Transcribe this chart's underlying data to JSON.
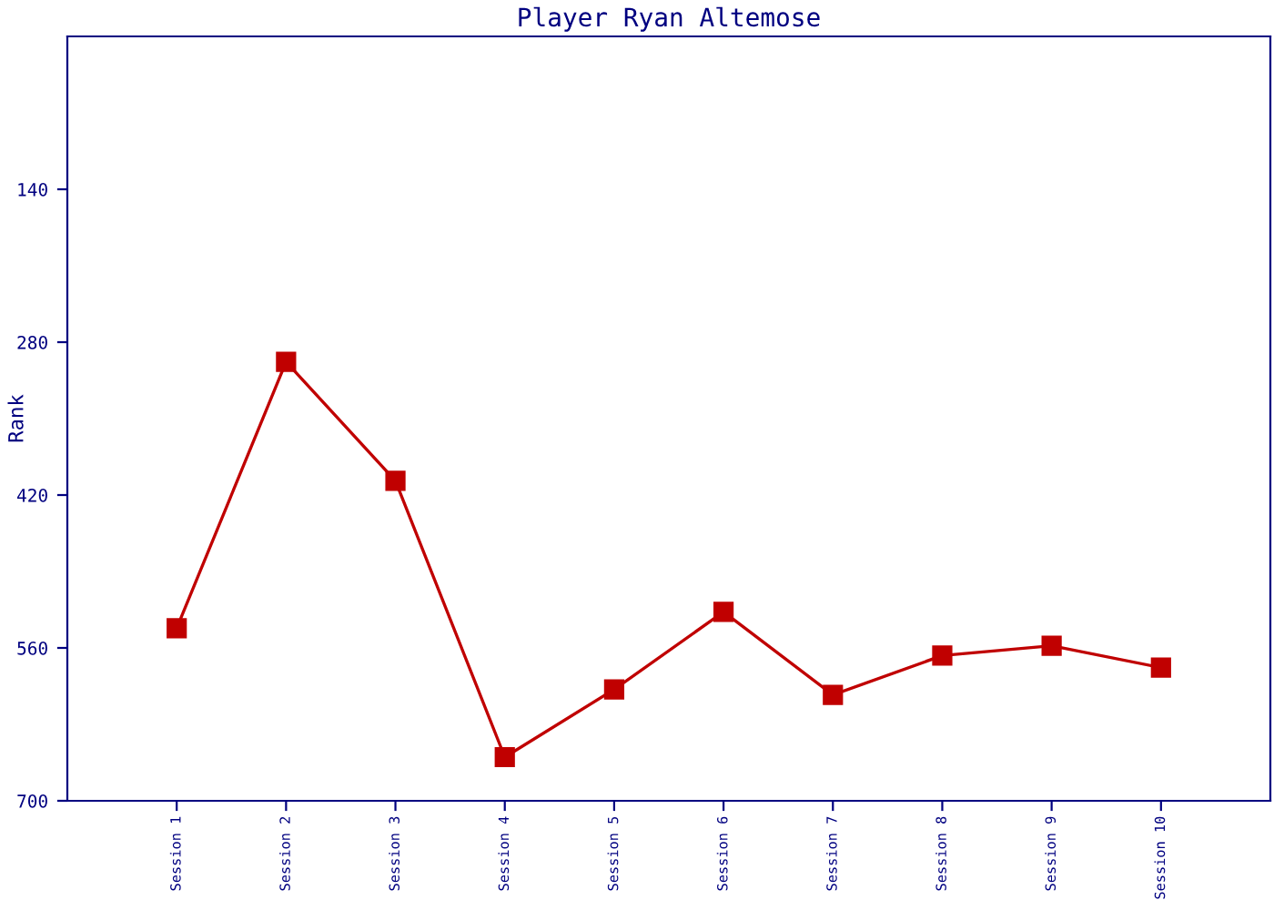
{
  "chart_data": {
    "type": "line",
    "title": "Player Ryan Altemose",
    "ylabel": "Rank",
    "categories": [
      "Session 1",
      "Session 2",
      "Session 3",
      "Session 4",
      "Session 5",
      "Session 6",
      "Session 7",
      "Session 8",
      "Session 9",
      "Session 10"
    ],
    "series": [
      {
        "color": "#c00000",
        "values": [
          542,
          298,
          407,
          660,
          598,
          527,
          603,
          567,
          558,
          578
        ]
      }
    ],
    "ylim": [
      700,
      0
    ],
    "yticks": [
      140,
      280,
      420,
      560,
      700
    ],
    "grid": false,
    "marker": "square",
    "line_style": "solid"
  }
}
